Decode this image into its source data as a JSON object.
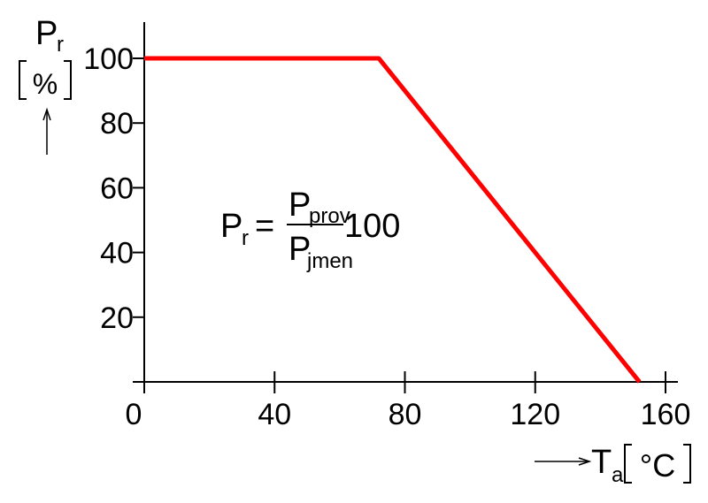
{
  "chart_data": {
    "type": "line",
    "x": [
      0,
      72,
      152
    ],
    "series": [
      {
        "values": [
          100,
          100,
          0
        ],
        "color": "#ff0000"
      }
    ],
    "xticks": [
      0,
      40,
      80,
      120,
      160
    ],
    "xtick_labels": [
      "0",
      "40",
      "80",
      "120",
      "160"
    ],
    "yticks": [
      20,
      40,
      60,
      80,
      100
    ],
    "ytick_labels": [
      "20",
      "40",
      "60",
      "80",
      "100"
    ],
    "xlim": [
      0,
      163
    ],
    "ylim": [
      0,
      115
    ],
    "grid": false,
    "ylabel": {
      "main": "P",
      "sub": "r",
      "unit": "%"
    },
    "xlabel": {
      "main": "T",
      "sub": "a",
      "unit": "°C"
    },
    "annotation": {
      "lhs_main": "P",
      "lhs_sub": "r",
      "equals": "=",
      "num_main": "P",
      "num_sub": "prov",
      "den_main": "P",
      "den_sub": "jmen",
      "factor": "100"
    }
  }
}
